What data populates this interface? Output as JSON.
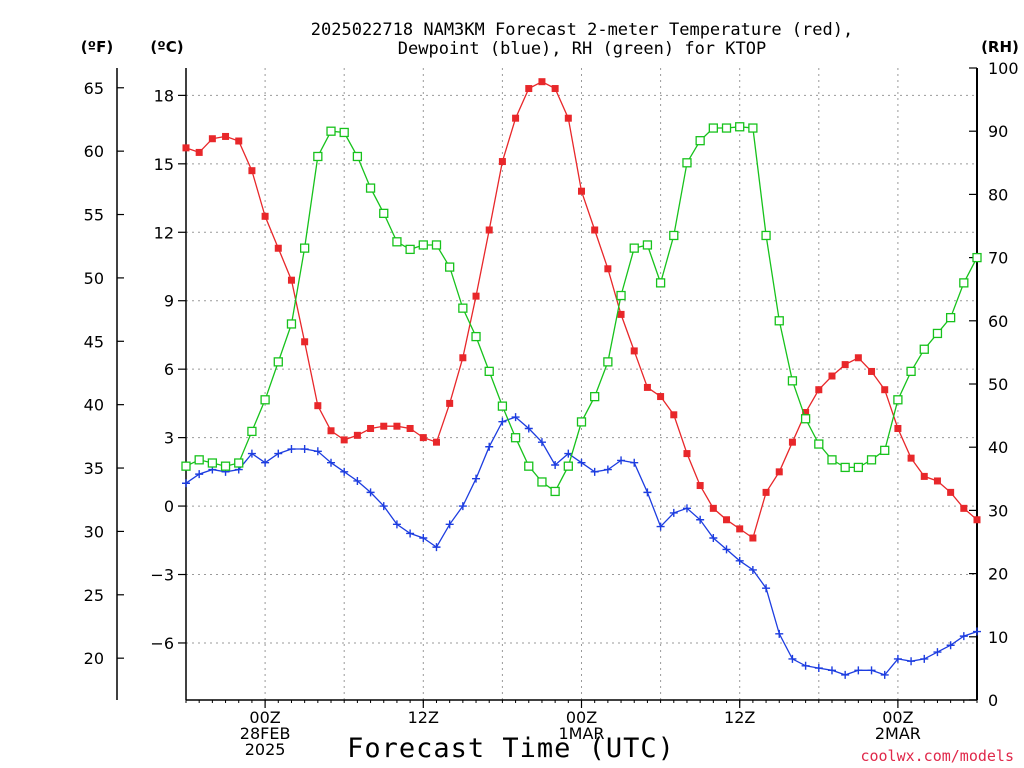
{
  "title_line1": "2025022718 NAM3KM Forecast 2-meter Temperature (red),",
  "title_line2": "Dewpoint (blue), RH (green) for KTOP",
  "left_unit_f": "(ºF)",
  "left_unit_c": "(ºC)",
  "right_unit": "(RH)",
  "xlabel": "Forecast Time (UTC)",
  "credit": "coolwx.com/models",
  "colors": {
    "temperature": "#e8272a",
    "dewpoint": "#1d3de0",
    "rh": "#17c21c"
  },
  "x_ticks": [
    {
      "x": 6,
      "lines": [
        "00Z",
        "28FEB",
        "2025"
      ]
    },
    {
      "x": 18,
      "lines": [
        "12Z"
      ]
    },
    {
      "x": 30,
      "lines": [
        "00Z",
        "1MAR"
      ]
    },
    {
      "x": 42,
      "lines": [
        "12Z"
      ]
    },
    {
      "x": 54,
      "lines": [
        "00Z",
        "2MAR"
      ]
    }
  ],
  "chart_data": {
    "type": "line",
    "x_units": "forecast hour (relative to 2025022718 run)",
    "xlim": [
      0,
      60
    ],
    "x": [
      0,
      1,
      2,
      3,
      4,
      5,
      6,
      7,
      8,
      9,
      10,
      11,
      12,
      13,
      14,
      15,
      16,
      17,
      18,
      19,
      20,
      21,
      22,
      23,
      24,
      25,
      26,
      27,
      28,
      29,
      30,
      31,
      32,
      33,
      34,
      35,
      36,
      37,
      38,
      39,
      40,
      41,
      42,
      43,
      44,
      45,
      46,
      47,
      48,
      49,
      50,
      51,
      52,
      53,
      54,
      55,
      56,
      57,
      58,
      59,
      60
    ],
    "ylim_c": [
      -8.5,
      19.2
    ],
    "yticks_c": [
      -6,
      -3,
      0,
      3,
      6,
      9,
      12,
      15,
      18
    ],
    "yticks_f": [
      20,
      25,
      30,
      35,
      40,
      45,
      50,
      55,
      60,
      65
    ],
    "ylim_rh": [
      0,
      100
    ],
    "yticks_rh": [
      0,
      10,
      20,
      30,
      40,
      50,
      60,
      70,
      80,
      90,
      100
    ],
    "grid": true,
    "series": [
      {
        "name": "Temperature",
        "axis": "c",
        "marker": "filled-square",
        "values": [
          15.7,
          15.5,
          16.1,
          16.2,
          16.0,
          14.7,
          12.7,
          11.3,
          9.9,
          7.2,
          4.4,
          3.3,
          2.9,
          3.1,
          3.4,
          3.5,
          3.5,
          3.4,
          3.0,
          2.8,
          4.5,
          6.5,
          9.2,
          12.1,
          15.1,
          17.0,
          18.3,
          18.6,
          18.3,
          17.0,
          13.8,
          12.1,
          10.4,
          8.4,
          6.8,
          5.2,
          4.8,
          4.0,
          2.3,
          0.9,
          -0.1,
          -0.6,
          -1.0,
          -1.4,
          0.6,
          1.5,
          2.8,
          4.1,
          5.1,
          5.7,
          6.2,
          6.5,
          5.9,
          5.1,
          3.4,
          2.1,
          1.3,
          1.1,
          0.6,
          -0.1,
          -0.6
        ]
      },
      {
        "name": "Dewpoint",
        "axis": "c",
        "marker": "plus",
        "values": [
          1.0,
          1.4,
          1.6,
          1.5,
          1.6,
          2.3,
          1.9,
          2.3,
          2.5,
          2.5,
          2.4,
          1.9,
          1.5,
          1.1,
          0.6,
          0.0,
          -0.8,
          -1.2,
          -1.4,
          -1.8,
          -0.8,
          0.0,
          1.2,
          2.6,
          3.7,
          3.9,
          3.4,
          2.8,
          1.8,
          2.3,
          1.9,
          1.5,
          1.6,
          2.0,
          1.9,
          0.6,
          -0.9,
          -0.3,
          -0.1,
          -0.6,
          -1.4,
          -1.9,
          -2.4,
          -2.8,
          -3.6,
          -5.6,
          -6.7,
          -7.0,
          -7.1,
          -7.2,
          -7.4,
          -7.2,
          -7.2,
          -7.4,
          -6.7,
          -6.8,
          -6.7,
          -6.4,
          -6.1,
          -5.7,
          -5.5
        ]
      },
      {
        "name": "RH",
        "axis": "rh",
        "marker": "open-square",
        "values": [
          37,
          38,
          37.5,
          37,
          37.5,
          42.5,
          47.5,
          53.5,
          59.5,
          71.5,
          86,
          90,
          89.8,
          86,
          81,
          77,
          72.5,
          71.3,
          72,
          72,
          68.5,
          62,
          57.5,
          52,
          46.5,
          41.5,
          37,
          34.5,
          33,
          37,
          44,
          48,
          53.5,
          64,
          71.5,
          72,
          66,
          73.5,
          85,
          88.5,
          90.5,
          90.5,
          90.7,
          90.5,
          73.5,
          60,
          50.5,
          44.5,
          40.5,
          38,
          36.8,
          36.8,
          38,
          39.5,
          47.5,
          52,
          55.5,
          58,
          60.5,
          66,
          70
        ]
      }
    ]
  }
}
